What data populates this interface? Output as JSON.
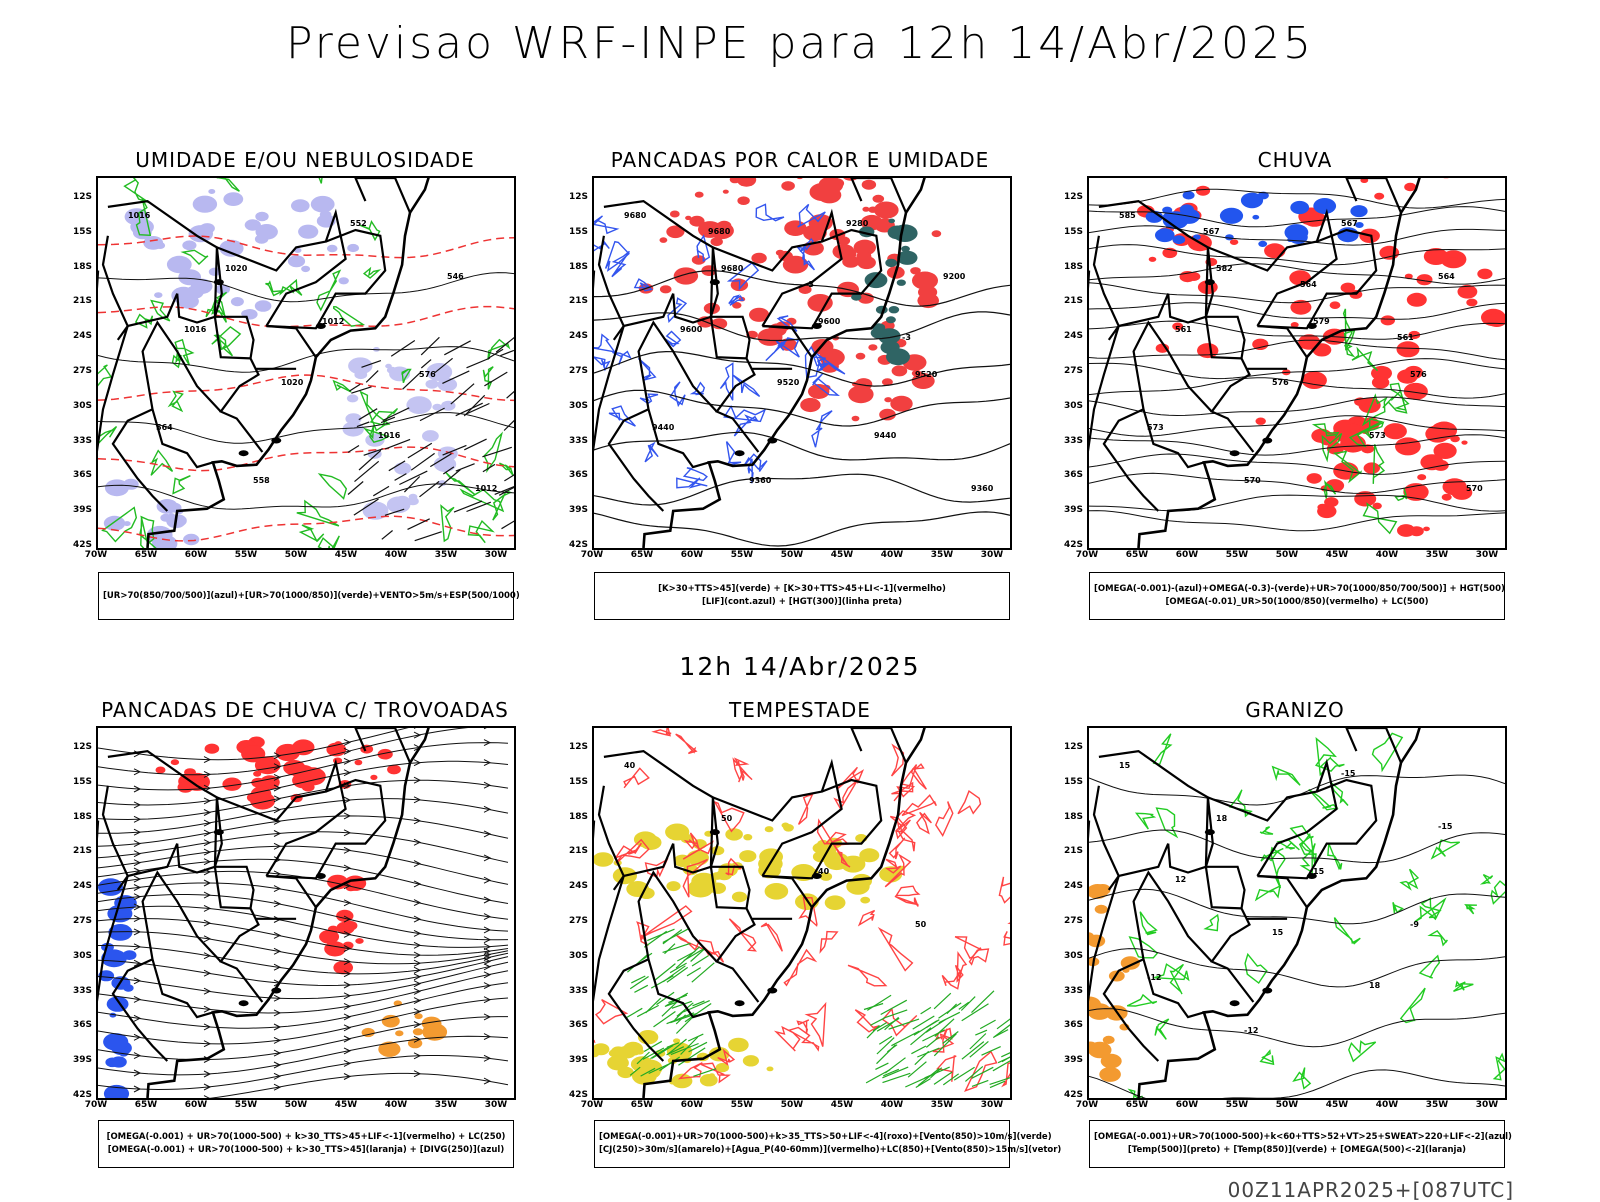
{
  "header": {
    "title": "Previsao WRF-INPE  para 12h 14/Abr/2025",
    "middle_label": "12h 14/Abr/2025",
    "footer": "00Z11APR2025+[087UTC]"
  },
  "axes": {
    "lat_labels": [
      "12S",
      "15S",
      "18S",
      "21S",
      "24S",
      "27S",
      "30S",
      "33S",
      "36S",
      "39S",
      "42S"
    ],
    "lon_labels": [
      "70W",
      "65W",
      "60W",
      "55W",
      "50W",
      "45W",
      "40W",
      "35W",
      "30W"
    ]
  },
  "panels": [
    {
      "title": "UMIDADE E/OU NEBULOSIDADE",
      "legend": [
        "[UR>70(850/700/500)](azul)+[UR>70(1000/850)](verde)+VENTO>5m/s+ESP(500/1000)"
      ],
      "contour_labels": [
        "1016",
        "1020",
        "1012",
        "576",
        "564",
        "558",
        "552",
        "546",
        "1016",
        "1020",
        "1016",
        "1012"
      ]
    },
    {
      "title": "PANCADAS POR CALOR E UMIDADE",
      "legend": [
        "[K>30+TTS>45](verde) + [K>30+TTS>45+LI<-1](vermelho)",
        "[LIF](cont.azul) + [HGT(300)](linha preta)"
      ],
      "contour_labels": [
        "9680",
        "9680",
        "9600",
        "9520",
        "9440",
        "9360",
        "9280",
        "9200",
        "9600",
        "9520",
        "9440",
        "9360",
        "9680",
        "-3",
        "-3"
      ]
    },
    {
      "title": "CHUVA",
      "legend": [
        "[OMEGA(-0.001)-(azul)+OMEGA(-0.3)-(verde)+UR>70(1000/850/700/500)] + HGT(500)",
        "[OMEGA(-0.01)_UR>50(1000/850)(vermelho) + LC(500)"
      ],
      "contour_labels": [
        "585",
        "582",
        "579",
        "576",
        "573",
        "570",
        "567",
        "564",
        "561",
        "576",
        "573",
        "570",
        "567",
        "564",
        "561"
      ]
    },
    {
      "title": "PANCADAS DE CHUVA C/ TROVOADAS",
      "legend": [
        "[OMEGA(-0.001) + UR>70(1000-500) + k>30_TTS>45+LIF<-1](vermelho) + LC(250)",
        "[OMEGA(-0.001) + UR>70(1000-500) + k>30_TTS>45](laranja) + [DIVG(250)](azul)"
      ],
      "contour_labels": []
    },
    {
      "title": "TEMPESTADE",
      "legend": [
        "[OMEGA(-0.001)+UR>70(1000-500)+k>35_TTS>50+LIF<-4](roxo)+[Vento(850)>10m/s](verde)",
        "[CJ(250)>30m/s](amarelo)+[Agua_P(40-60mm)](vermelho)+LC(850)+[Vento(850)>15m/s](vetor)"
      ],
      "contour_labels": [
        "40",
        "50",
        "40",
        "50"
      ]
    },
    {
      "title": "GRANIZO",
      "legend": [
        "[OMEGA(-0.001)+UR>70(1000-500)+k<60+TTS>52+VT>25+SWEAT>220+LIF<-2](azul)",
        "[Temp(500)](preto) + [Temp(850)](verde) + [OMEGA(500)<-2](laranja)"
      ],
      "contour_labels": [
        "15",
        "18",
        "15",
        "-9",
        "-12",
        "-12",
        "-15",
        "-15",
        "12",
        "15",
        "18"
      ]
    }
  ]
}
